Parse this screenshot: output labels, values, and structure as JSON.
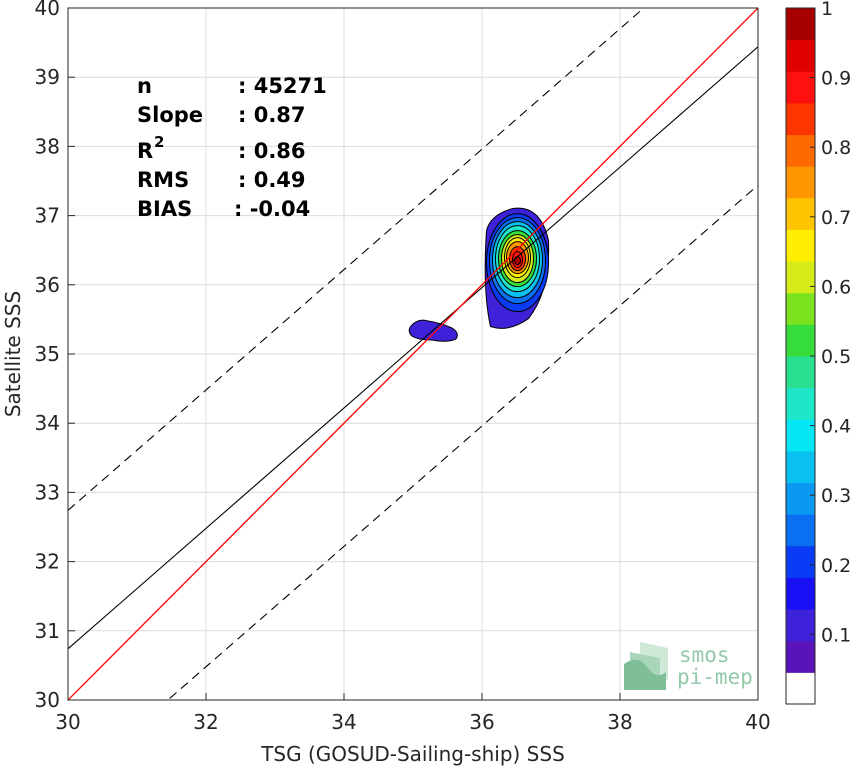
{
  "chart_data": {
    "type": "heatmap",
    "xlabel": "TSG (GOSUD-Sailing-ship) SSS",
    "ylabel": "Satellite SSS",
    "xlim": [
      30,
      40
    ],
    "ylim": [
      30,
      40
    ],
    "x_ticks": [
      "30",
      "32",
      "34",
      "36",
      "38",
      "40"
    ],
    "y_ticks": [
      "30",
      "31",
      "32",
      "33",
      "34",
      "35",
      "36",
      "37",
      "38",
      "39",
      "40"
    ],
    "grid": true,
    "stats": [
      {
        "key": "n",
        "value": ": 45271"
      },
      {
        "key": "Slope",
        "value": ": 0.87"
      },
      {
        "key": "R",
        "sup": "2",
        "value": ": 0.86"
      },
      {
        "key": "RMS",
        "value": ": 0.49"
      },
      {
        "key": "BIAS",
        "value": ": -0.04"
      }
    ],
    "lines": {
      "identity": {
        "slope": 1,
        "intercept": 0,
        "color": "#ff0000"
      },
      "regression": {
        "slope": 0.87,
        "intercept": 4.64,
        "color": "#000000"
      },
      "envelope_offset": 2.0
    },
    "density_peak": {
      "x": 36.5,
      "y": 36.35
    },
    "density_levels": [
      0.05,
      0.1,
      0.15,
      0.2,
      0.25,
      0.3,
      0.35,
      0.4,
      0.45,
      0.5,
      0.55,
      0.6,
      0.65,
      0.7,
      0.75,
      0.8,
      0.85,
      0.9,
      0.95
    ],
    "colorbar": {
      "min": 0,
      "max": 1,
      "ticks": [
        "0.1",
        "0.2",
        "0.3",
        "0.4",
        "0.5",
        "0.6",
        "0.7",
        "0.8",
        "0.9",
        "1"
      ],
      "colors": [
        "#ffffff",
        "#5a13b8",
        "#3d22d9",
        "#1a10f5",
        "#0a3cf5",
        "#0a6ff0",
        "#0a98f0",
        "#0ac0f0",
        "#05e6f5",
        "#1ee6c8",
        "#28e090",
        "#35dc3a",
        "#7ae21f",
        "#d6ec1a",
        "#ffee00",
        "#ffc300",
        "#ff9600",
        "#ff6a00",
        "#ff3500",
        "#ff1010",
        "#e00000",
        "#a80000"
      ]
    },
    "logo": {
      "line1": "smos",
      "line2": "pi-mep"
    }
  }
}
